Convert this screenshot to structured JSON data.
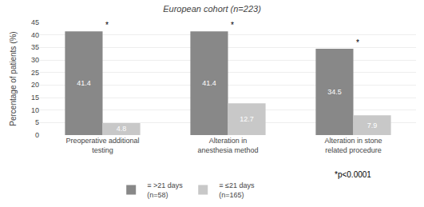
{
  "chart_data": {
    "type": "bar",
    "title": "European cohort (n=223)",
    "categories": [
      "Preoperative additional testing",
      "Alteration in anesthesia method",
      "Alteration in stone related procedure"
    ],
    "series": [
      {
        "name": "≡ >21 days\n(n=58)",
        "color": "#888888",
        "values": [
          41.4,
          41.4,
          34.5
        ],
        "annotation": "*"
      },
      {
        "name": "≡ ≤21 days\n(n=165)",
        "color": "#c8c8c8",
        "values": [
          4.8,
          12.7,
          7.9
        ]
      }
    ],
    "ylabel": "Percentage of patients (%)",
    "ylim": [
      0,
      45
    ],
    "yticks": [
      0,
      5,
      10,
      15,
      20,
      25,
      30,
      35,
      40,
      45
    ],
    "grid": true,
    "data_labels": true,
    "annotation": "*p<0.0001"
  }
}
